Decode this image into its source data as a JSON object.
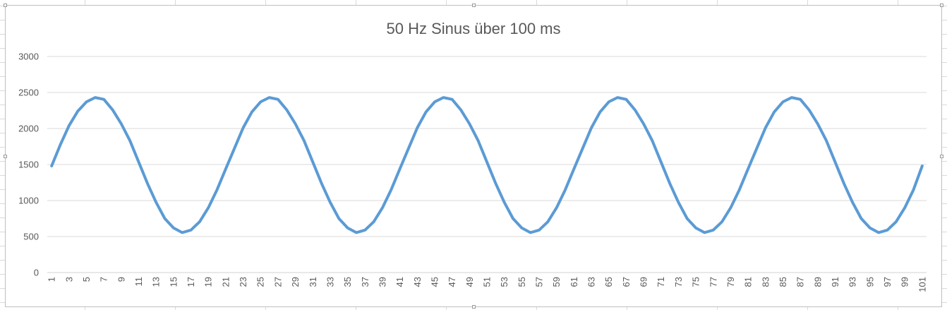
{
  "chart_data": {
    "type": "line",
    "title": "50 Hz Sinus über 100 ms",
    "xlabel": "",
    "ylabel": "",
    "ylim": [
      0,
      3000
    ],
    "y_ticks": [
      "0",
      "500",
      "1000",
      "1500",
      "2000",
      "2500",
      "3000"
    ],
    "grid": true,
    "legend": "none",
    "series_color": "#5b9bd5",
    "gridline_color": "#d9d9d9",
    "text_color": "#595959",
    "x_start": 1,
    "x_end": 101,
    "x_tick_labels": [
      "1",
      "3",
      "5",
      "7",
      "9",
      "11",
      "13",
      "15",
      "17",
      "19",
      "21",
      "23",
      "25",
      "27",
      "29",
      "31",
      "33",
      "35",
      "37",
      "39",
      "41",
      "43",
      "45",
      "47",
      "49",
      "51",
      "53",
      "55",
      "57",
      "59",
      "61",
      "63",
      "65",
      "67",
      "69",
      "71",
      "73",
      "75",
      "77",
      "79",
      "81",
      "83",
      "85",
      "87",
      "89",
      "91",
      "93",
      "95",
      "97",
      "99",
      "101"
    ],
    "series": [
      {
        "values": [
          1480,
          1775,
          2040,
          2240,
          2370,
          2430,
          2405,
          2260,
          2065,
          1830,
          1535,
          1240,
          975,
          750,
          620,
          555,
          590,
          705,
          900,
          1150,
          1440,
          1725,
          2010,
          2230,
          2370,
          2430,
          2405,
          2260,
          2065,
          1830,
          1535,
          1240,
          975,
          750,
          620,
          555,
          590,
          705,
          900,
          1150,
          1440,
          1725,
          2010,
          2230,
          2370,
          2430,
          2405,
          2260,
          2065,
          1830,
          1535,
          1240,
          975,
          750,
          620,
          555,
          590,
          705,
          900,
          1150,
          1440,
          1725,
          2010,
          2230,
          2370,
          2430,
          2405,
          2260,
          2065,
          1830,
          1535,
          1240,
          975,
          750,
          620,
          555,
          590,
          705,
          900,
          1150,
          1440,
          1725,
          2010,
          2230,
          2370,
          2430,
          2405,
          2260,
          2065,
          1830,
          1535,
          1240,
          975,
          750,
          620,
          555,
          590,
          705,
          900,
          1150,
          1480
        ]
      }
    ]
  }
}
